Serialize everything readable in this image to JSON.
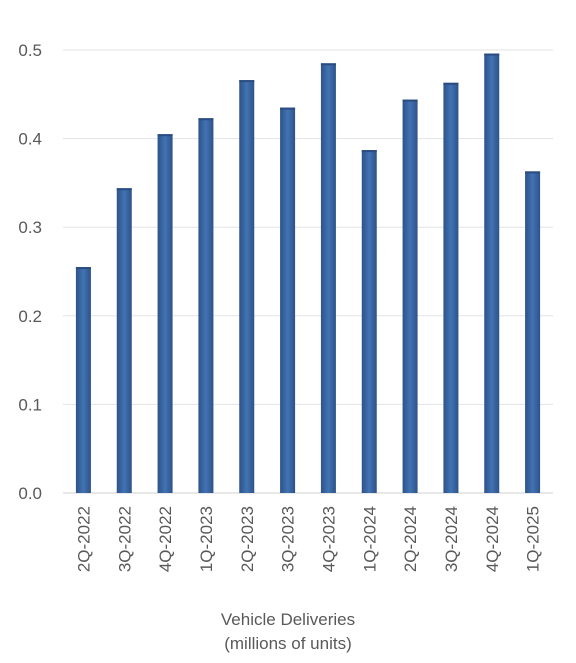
{
  "chart_data": {
    "type": "bar",
    "categories": [
      "2Q-2022",
      "3Q-2022",
      "4Q-2022",
      "1Q-2023",
      "2Q-2023",
      "3Q-2023",
      "4Q-2023",
      "1Q-2024",
      "2Q-2024",
      "3Q-2024",
      "4Q-2024",
      "1Q-2025"
    ],
    "series": [
      {
        "values": [
          0.255,
          0.344,
          0.405,
          0.423,
          0.466,
          0.435,
          0.485,
          0.387,
          0.444,
          0.463,
          0.496,
          0.363
        ]
      }
    ],
    "yticks": [
      "0.0",
      "0.1",
      "0.2",
      "0.3",
      "0.4",
      "0.5"
    ],
    "ylim": [
      0,
      0.5
    ],
    "grid": true,
    "legend": "none",
    "bar_color": "#3b67a2",
    "caption_line1": "Vehicle Deliveries",
    "caption_line2": "(millions of units)"
  }
}
